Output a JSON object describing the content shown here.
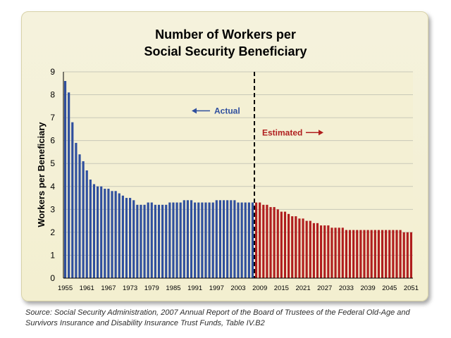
{
  "chart_data": {
    "type": "bar",
    "title_line1": "Number of Workers per",
    "title_line2": "Social Security Beneficiary",
    "ylabel": "Workers per Beneficiary",
    "xlabel": "",
    "ylim": [
      0,
      9
    ],
    "yticks": [
      "0",
      "1",
      "2",
      "3",
      "4",
      "5",
      "6",
      "7",
      "8",
      "9"
    ],
    "xtick_labels": [
      "1955",
      "1961",
      "1967",
      "1973",
      "1979",
      "1985",
      "1991",
      "1997",
      "2003",
      "2009",
      "2015",
      "2021",
      "2027",
      "2033",
      "2039",
      "2045",
      "2051"
    ],
    "grid": true,
    "legend": "none",
    "split_year": 2007,
    "actual_label": "Actual",
    "estimated_label": "Estimated",
    "colors": {
      "actual": "#2f4f9e",
      "estimated": "#b01e1e",
      "grid": "#c8c8b8",
      "frame": "#f4f0d4"
    },
    "series": [
      {
        "name": "Actual",
        "x": [
          1955,
          1956,
          1957,
          1958,
          1959,
          1960,
          1961,
          1962,
          1963,
          1964,
          1965,
          1966,
          1967,
          1968,
          1969,
          1970,
          1971,
          1972,
          1973,
          1974,
          1975,
          1976,
          1977,
          1978,
          1979,
          1980,
          1981,
          1982,
          1983,
          1984,
          1985,
          1986,
          1987,
          1988,
          1989,
          1990,
          1991,
          1992,
          1993,
          1994,
          1995,
          1996,
          1997,
          1998,
          1999,
          2000,
          2001,
          2002,
          2003,
          2004,
          2005,
          2006,
          2007
        ],
        "values": [
          8.6,
          8.1,
          6.8,
          5.9,
          5.4,
          5.1,
          4.7,
          4.3,
          4.1,
          4.0,
          4.0,
          3.9,
          3.9,
          3.8,
          3.8,
          3.7,
          3.6,
          3.5,
          3.5,
          3.4,
          3.2,
          3.2,
          3.2,
          3.3,
          3.3,
          3.2,
          3.2,
          3.2,
          3.2,
          3.3,
          3.3,
          3.3,
          3.3,
          3.4,
          3.4,
          3.4,
          3.3,
          3.3,
          3.3,
          3.3,
          3.3,
          3.3,
          3.4,
          3.4,
          3.4,
          3.4,
          3.4,
          3.4,
          3.3,
          3.3,
          3.3,
          3.3,
          3.3
        ]
      },
      {
        "name": "Estimated",
        "x": [
          2008,
          2009,
          2010,
          2011,
          2012,
          2013,
          2014,
          2015,
          2016,
          2017,
          2018,
          2019,
          2020,
          2021,
          2022,
          2023,
          2024,
          2025,
          2026,
          2027,
          2028,
          2029,
          2030,
          2031,
          2032,
          2033,
          2034,
          2035,
          2036,
          2037,
          2038,
          2039,
          2040,
          2041,
          2042,
          2043,
          2044,
          2045,
          2046,
          2047,
          2048,
          2049,
          2050,
          2051
        ],
        "values": [
          3.3,
          3.3,
          3.2,
          3.2,
          3.1,
          3.1,
          3.0,
          2.9,
          2.9,
          2.8,
          2.7,
          2.7,
          2.6,
          2.6,
          2.5,
          2.5,
          2.4,
          2.4,
          2.3,
          2.3,
          2.3,
          2.2,
          2.2,
          2.2,
          2.2,
          2.1,
          2.1,
          2.1,
          2.1,
          2.1,
          2.1,
          2.1,
          2.1,
          2.1,
          2.1,
          2.1,
          2.1,
          2.1,
          2.1,
          2.1,
          2.1,
          2.0,
          2.0,
          2.0
        ]
      }
    ]
  },
  "source_note": "Source: Social Security Administration, 2007 Annual Report of the Board of Trustees of the Federal Old-Age and Survivors Insurance and Disability Insurance Trust Funds, Table IV.B2"
}
